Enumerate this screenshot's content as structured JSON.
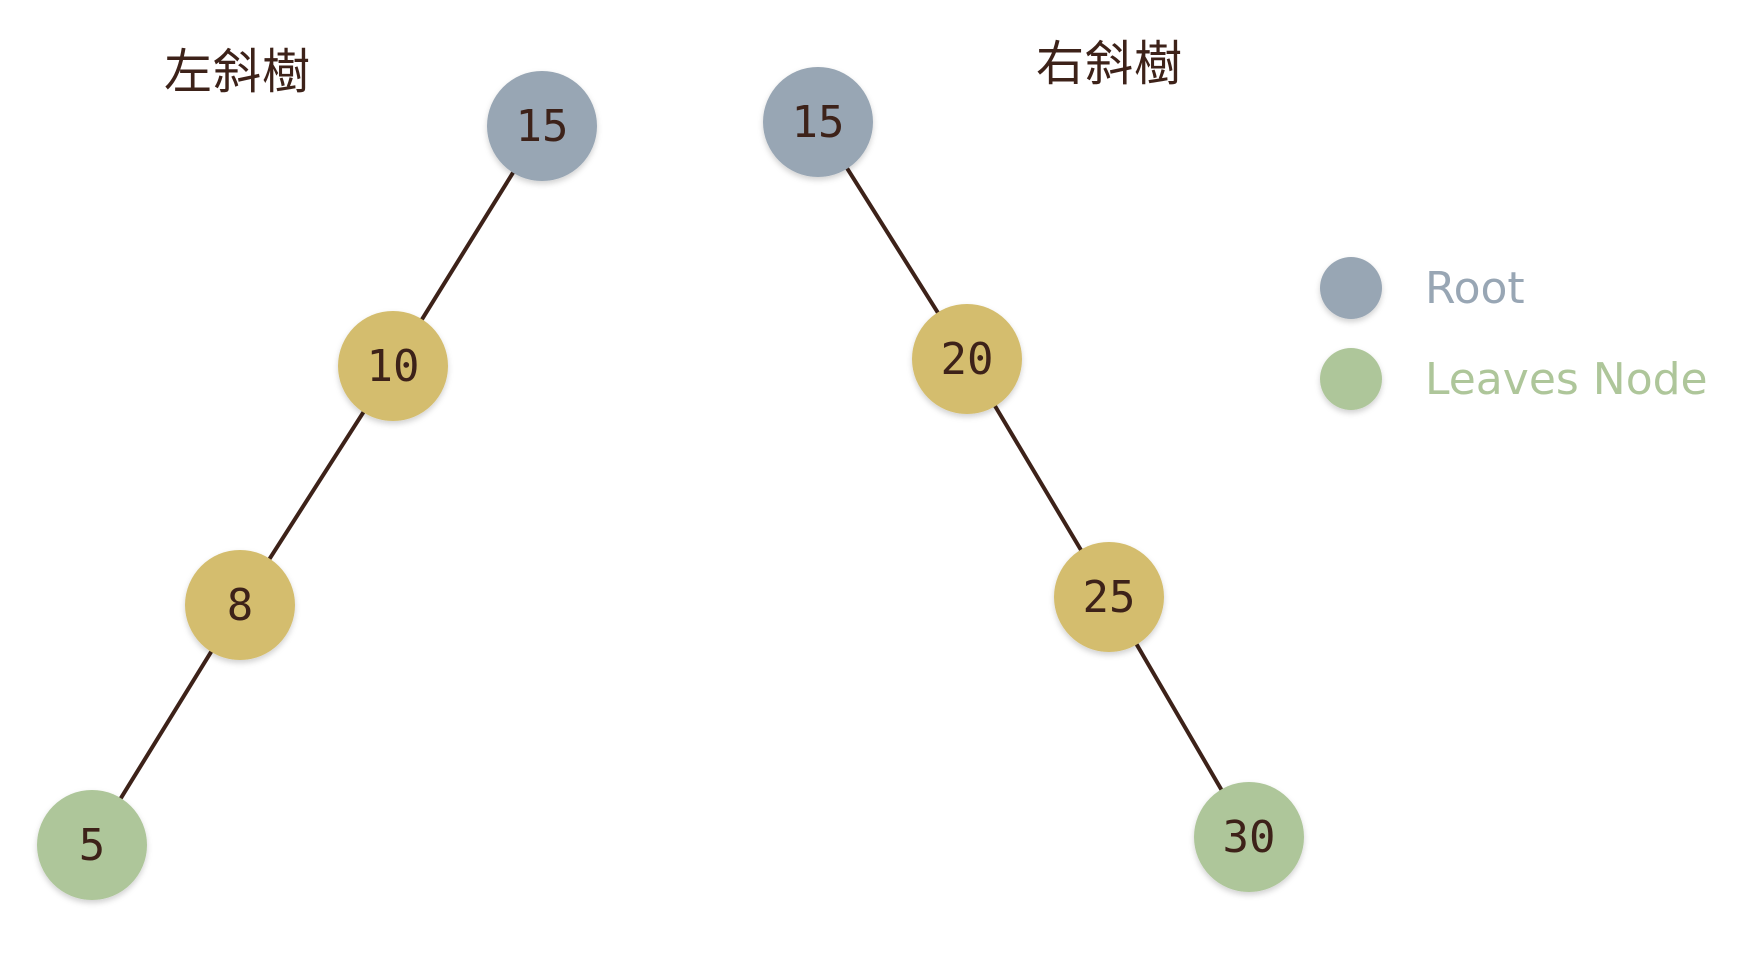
{
  "titles": {
    "left": "左斜樹",
    "right": "右斜樹"
  },
  "colors": {
    "root": "#98a6b4",
    "internal": "#d4bd6e",
    "leaf": "#aec69a",
    "edge": "#3d2219",
    "text": "#3d2219"
  },
  "trees": {
    "left": {
      "nodes": [
        {
          "id": "l15",
          "label": "15",
          "kind": "root"
        },
        {
          "id": "l10",
          "label": "10",
          "kind": "internal"
        },
        {
          "id": "l8",
          "label": "8",
          "kind": "internal"
        },
        {
          "id": "l5",
          "label": "5",
          "kind": "leaf"
        }
      ],
      "edges": [
        [
          "l15",
          "l10"
        ],
        [
          "l10",
          "l8"
        ],
        [
          "l8",
          "l5"
        ]
      ]
    },
    "right": {
      "nodes": [
        {
          "id": "r15",
          "label": "15",
          "kind": "root"
        },
        {
          "id": "r20",
          "label": "20",
          "kind": "internal"
        },
        {
          "id": "r25",
          "label": "25",
          "kind": "internal"
        },
        {
          "id": "r30",
          "label": "30",
          "kind": "leaf"
        }
      ],
      "edges": [
        [
          "r15",
          "r20"
        ],
        [
          "r20",
          "r25"
        ],
        [
          "r25",
          "r30"
        ]
      ]
    }
  },
  "legend": [
    {
      "kind": "root",
      "label": "Root"
    },
    {
      "kind": "leaf",
      "label": "Leaves Node"
    }
  ]
}
